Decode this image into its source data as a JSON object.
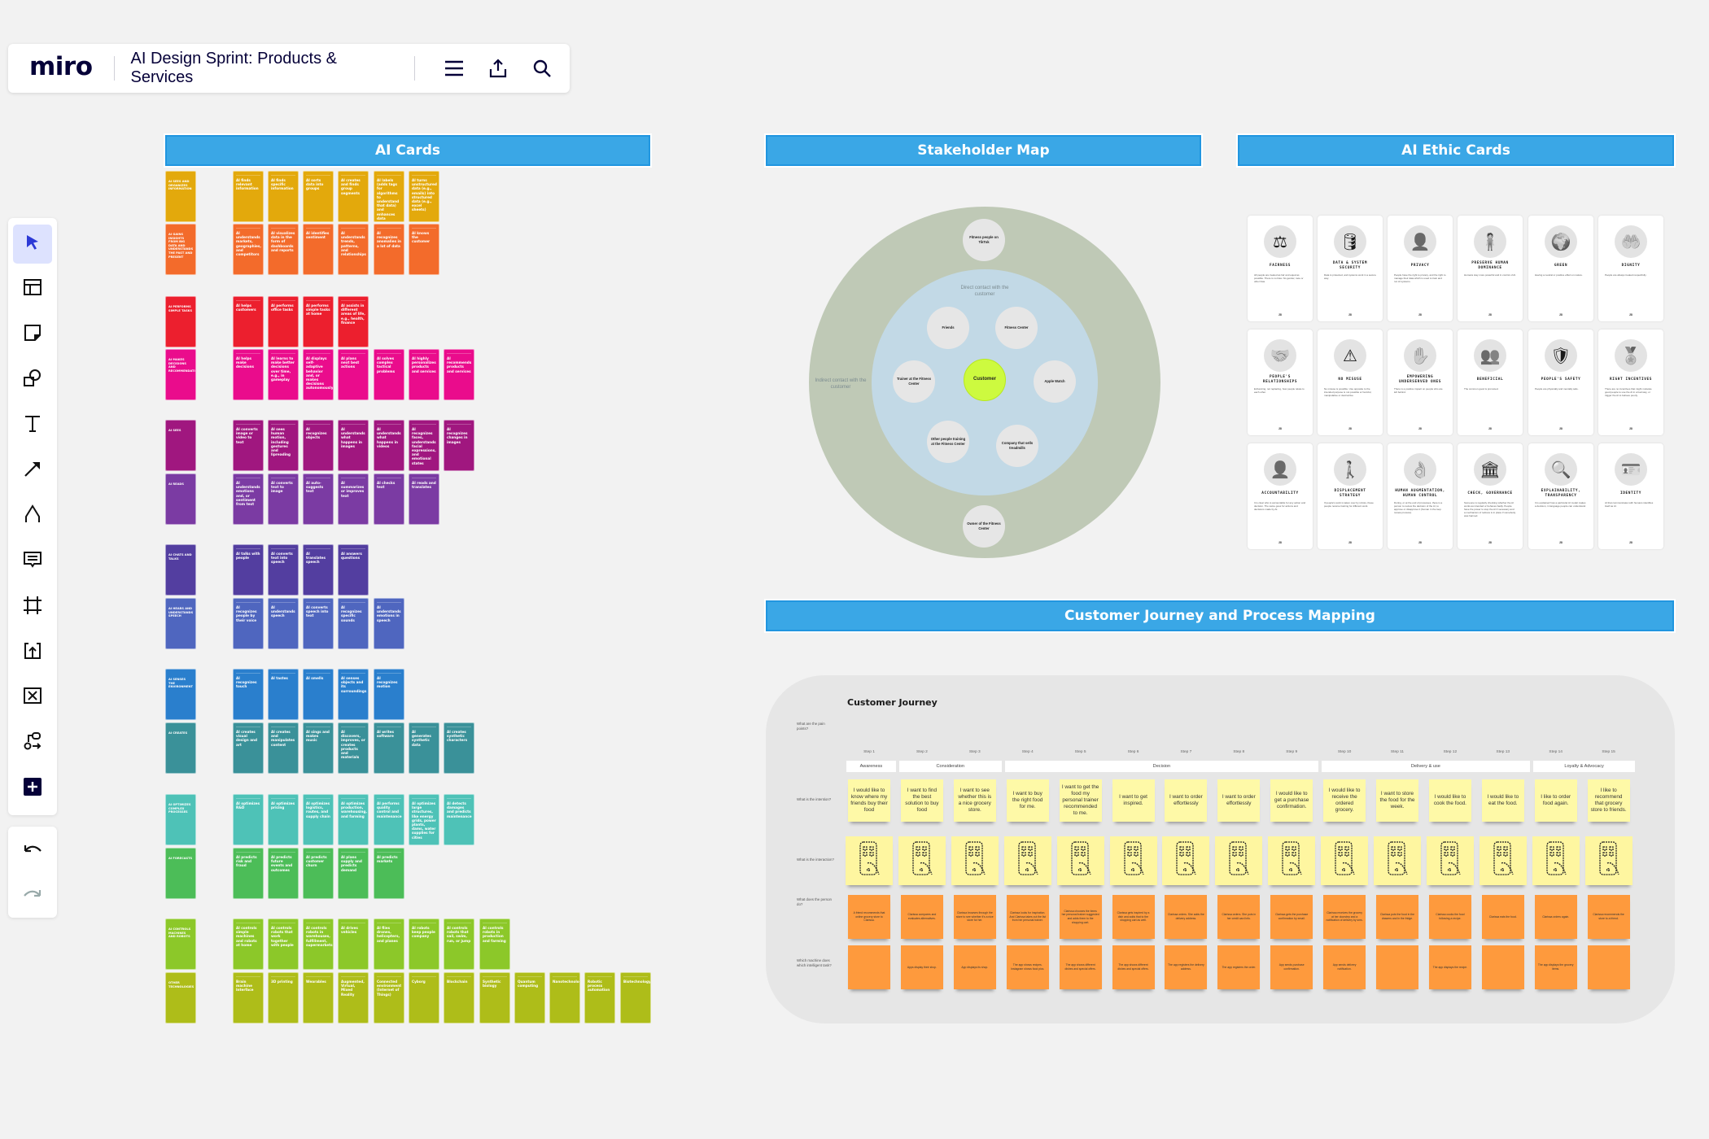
{
  "topbar": {
    "logo": "miro",
    "board_title": "AI Design Sprint: Products & Services",
    "icons": [
      "menu-icon",
      "export-icon",
      "search-icon"
    ]
  },
  "toolbar": {
    "tools": [
      {
        "name": "select",
        "icon": "cursor-icon",
        "active": true
      },
      {
        "name": "templates",
        "icon": "template-icon"
      },
      {
        "name": "sticky-note",
        "icon": "sticky-note-icon"
      },
      {
        "name": "shapes",
        "icon": "shapes-icon"
      },
      {
        "name": "text",
        "icon": "text-icon"
      },
      {
        "name": "connection-line",
        "icon": "arrow-icon"
      },
      {
        "name": "pen",
        "icon": "pen-icon"
      },
      {
        "name": "comment",
        "icon": "comment-icon"
      },
      {
        "name": "frame",
        "icon": "frame-icon"
      },
      {
        "name": "upload",
        "icon": "upload-icon"
      },
      {
        "name": "embed",
        "icon": "embed-icon"
      },
      {
        "name": "mindmap",
        "icon": "mindmap-icon"
      },
      {
        "name": "more-apps",
        "icon": "plus-icon"
      }
    ],
    "history": [
      "undo-icon",
      "redo-icon"
    ]
  },
  "sections": {
    "ai_cards": "AI Cards",
    "stakeholder_map": "Stakeholder Map",
    "ai_ethic_cards": "AI Ethic Cards",
    "customer_journey": "Customer Journey and Process Mapping"
  },
  "ai_cards": {
    "rows": [
      {
        "color": "#e3a90c",
        "category": "AI sees and organizes information",
        "cards": [
          "AI finds relevant information",
          "AI finds specific information",
          "AI sorts data into groups",
          "AI creates and finds group segments",
          "AI labels (adds tags for algorithms to understand that data) and enhances data",
          "AI turns unstructured data (e.g., emails) into structured data (e.g., excel sheets)"
        ]
      },
      {
        "color": "#f36b2b",
        "category": "AI gains insights from big data and understands the past and present",
        "cards": [
          "AI understands markets, geographies, and competitors",
          "AI visualizes data in the form of dashboards and reports",
          "AI identifies sentiment",
          "AI understands trends, patterns, and relationships",
          "AI recognizes anomalies in a lot of data",
          "AI knows the customer"
        ]
      },
      {
        "color": "#ec1f2e",
        "category": "AI performs simple tasks",
        "cards": [
          "AI helps customers",
          "AI performs office tasks",
          "AI performs simple tasks at home",
          "AI assists in different areas of life, e.g., health, finance"
        ]
      },
      {
        "color": "#ea0c8c",
        "category": "AI makes decisions and recommendations",
        "cards": [
          "AI helps make decisions",
          "AI learns to make better decisions over time, e.g., in gameplay",
          "AI displays self-adaptive behavior and, or makes decisions autonomously",
          "AI plans next best actions",
          "AI solves complex tactical problems",
          "AI highly personalizes products and services",
          "AI recommends products and services"
        ]
      },
      {
        "color": "#a0177f",
        "category": "AI sees",
        "cards": [
          "AI converts image or video to text",
          "AI sees human motion, including gestures and lipreading",
          "AI recognizes objects",
          "AI understands what happens in images",
          "AI understands what happens in videos",
          "AI recognizes faces, understands facial expressions, and emotional states",
          "AI recognizes changes in images"
        ]
      },
      {
        "color": "#7b3ba3",
        "category": "AI reads",
        "cards": [
          "AI understands emotions and, or sentiment from text",
          "AI converts text to image",
          "AI auto-suggests text",
          "AI summarizes or improves text",
          "AI checks text",
          "AI reads and translates"
        ]
      },
      {
        "color": "#533ea0",
        "category": "AI chats and talks",
        "cards": [
          "AI talks with people",
          "AI converts text into speech",
          "AI translates speech",
          "AI answers questions"
        ]
      },
      {
        "color": "#4f66bf",
        "category": "AI hears and understands speech",
        "cards": [
          "AI recognizes people by their voice",
          "AI understands speech",
          "AI converts speech into text",
          "AI recognizes specific sounds",
          "AI understands emotions in speech"
        ]
      },
      {
        "color": "#2a7fcd",
        "category": "AI senses the environment",
        "cards": [
          "AI recognizes touch",
          "AI tastes",
          "AI smells",
          "AI senses objects and its surroundings",
          "AI recognizes motion"
        ]
      },
      {
        "color": "#3a9199",
        "category": "AI creates",
        "cards": [
          "AI creates visual design and art",
          "AI creates and manipulates content",
          "AI sings and makes music",
          "AI discovers, improves, or creates products and materials",
          "AI writes software",
          "AI generates synthetic data",
          "AI creates synthetic characters"
        ]
      },
      {
        "color": "#4ec2b7",
        "category": "AI optimizes complex processes",
        "cards": [
          "AI optimizes R&D",
          "AI optimizes pricing",
          "AI optimizes logistics, routes, and supply chain",
          "AI optimizes production, warehousing, and farming",
          "AI performs quality control and maintenance",
          "AI optimizes large structures, like energy grids, power plants, dams, water supplies for cities",
          "AI detects damages and predicts maintenance"
        ]
      },
      {
        "color": "#4cbd58",
        "category": "AI forecasts",
        "cards": [
          "AI predicts risk and fraud",
          "AI predicts future events and outcomes",
          "AI predicts customer churn",
          "AI plans supply and predicts demand",
          "AI predicts markets"
        ]
      },
      {
        "color": "#8cc829",
        "category": "AI controls machines and robots",
        "cards": [
          "AI controls simple machines and robots at home",
          "AI controls robots that work together with people",
          "AI controls robots in warehouses, fulfillment, supermarkets",
          "AI drives vehicles",
          "AI flies drones, helicopters, and planes",
          "AI robots keep people company",
          "AI controls robots that sail, swim, run, or jump",
          "AI controls robots in production and farming"
        ]
      },
      {
        "color": "#aebd19",
        "category": "Other technologies",
        "cards": [
          "Brain machine Interface",
          "3D printing",
          "Wearables",
          "Augmented, Virtual, Mixed Reality",
          "Connected environment (Internet of Things)",
          "Cyborg",
          "Blockchain",
          "Synthetic biology",
          "Quantum computing",
          "Nanotechnology",
          "Robotic process automation",
          "Biotechnology"
        ]
      }
    ]
  },
  "stakeholder_map": {
    "outer_label": "Indirect contact with the customer",
    "inner_label": "Direct contact with the customer",
    "center": "Customer",
    "inner_nodes": [
      "Friends",
      "Fitness Center",
      "Trainer at the Fitness Center",
      "Apple Watch",
      "Other people training at the Fitness Center",
      "Company that sells treadmills"
    ],
    "outer_nodes": [
      "Fitness people on TikTok",
      "Owner of the Fitness Center"
    ],
    "colors": {
      "outer": "#bfc9b6",
      "inner": "#c2d9e6",
      "center": "#cdfa3f"
    }
  },
  "ai_ethic_cards": {
    "cards": [
      {
        "title": "FAIRNESS",
        "icon": "scales-icon",
        "desc": "All people are treated as fair and equal as possible. There is no bias. No gender, race or other bias."
      },
      {
        "title": "DATA & SYSTEM SECURITY",
        "icon": "database-lock-icon",
        "desc": "Data is protected, and systems work in a secure way."
      },
      {
        "title": "PRIVACY",
        "icon": "person-lock-icon",
        "desc": "People have the right to privacy, and the right to manage their data which is used to train and run AI systems."
      },
      {
        "title": "PRESERVE HUMAN DOMINANCE",
        "icon": "standing-person-icon",
        "desc": "Humans stay more powerful and in control of AI."
      },
      {
        "title": "GREEN",
        "icon": "globe-hand-icon",
        "desc": "Having a neutral or positive effect on nature."
      },
      {
        "title": "DIGNITY",
        "icon": "hands-person-icon",
        "desc": "People are always treated respectfully."
      },
      {
        "title": "PEOPLE'S RELATIONSHIPS",
        "icon": "handshake-icon",
        "desc": "Enhancing, not replacing, how people relate to each other."
      },
      {
        "title": "NO MISUSE",
        "icon": "warning-icon",
        "desc": "No misuse is possible. Use opposite to the intended purpose is not possible or harmful, manipulative or destructive."
      },
      {
        "title": "EMPOWERING UNDERSERVED ONES",
        "icon": "raised-hand-icon",
        "desc": "There is a positive impact on people who are left behind."
      },
      {
        "title": "BENEFICIAL",
        "icon": "group-icon",
        "desc": "The common good is promoted."
      },
      {
        "title": "PEOPLE'S SAFETY",
        "icon": "shield-check-icon",
        "desc": "People are physically and mentally safe."
      },
      {
        "title": "RIGHT INCENTIVES",
        "icon": "award-hands-icon",
        "desc": "There are no incentives that might motivate good people to use the AI in a bad way, or trigger the AI to behave poorly."
      },
      {
        "title": "ACCOUNTABILITY",
        "icon": "person-check-icon",
        "desc": "It is clear who is accountable for any action and decision. The same goes for actions and decisions made by AI."
      },
      {
        "title": "DISPLACEMENT STRATEGY",
        "icon": "walking-person-gears-icon",
        "desc": "If people's work is taken over by robots, these people receive training for different work."
      },
      {
        "title": "HUMAN AUGMENTATION, HUMAN CONTROL",
        "icon": "ok-hand-icon",
        "desc": "During, or at the end of processes, there is a person to review the decision of the AI, to approve or disapprove it (human in the loop review process)."
      },
      {
        "title": "CHECK, GOVERNANCE",
        "icon": "institution-icon",
        "desc": "Someone is regularly checking whether the AI works as intended or behaves badly. People have the power to stop the AI if necessary and a mechanism of redress is in place if somebody was harmed."
      },
      {
        "title": "EXPLAINABILITY, TRANSPARENCY",
        "icon": "magnifier-eye-icon",
        "desc": "It is explained how a particular AI model makes a decision, in language people can understand."
      },
      {
        "title": "IDENTITY",
        "icon": "id-card-icon",
        "desc": "AI that communicates with humans identifies itself as AI."
      }
    ],
    "card_number_label": "28"
  },
  "customer_journey": {
    "title": "Customer Journey",
    "row_labels": [
      "What are the pain points?",
      "What is the intention?",
      "What is the interaction?",
      "What does the person do?",
      "Which machine does which intelligent task?"
    ],
    "steps": [
      "Step 1",
      "Step 2",
      "Step 3",
      "Step 4",
      "Step 5",
      "Step 6",
      "Step 7",
      "Step 8",
      "Step 9",
      "Step 10",
      "Step 11",
      "Step 12",
      "Step 13",
      "Step 14",
      "Step 15"
    ],
    "phases": [
      {
        "label": "Awareness",
        "span": 1
      },
      {
        "label": "Consideration",
        "span": 2
      },
      {
        "label": "Decision",
        "span": 6
      },
      {
        "label": "Delivery & use",
        "span": 4
      },
      {
        "label": "Loyalty & Advocacy",
        "span": 2
      }
    ],
    "intentions": [
      "I would like to know where my friends buy their food",
      "I want to find the best solution to buy food",
      "I want to see whether this is a nice grocery store.",
      "I want to buy the right food for me.",
      "I want to get the food my personal trainer recommended to me.",
      "I want to get inspired.",
      "I want to order effortlessly",
      "I want to order effortlessly",
      "I would like to get a purchase confirmation.",
      "I would like to receive the ordered grocery.",
      "I want to store the food for the week.",
      "I would like to cook the food.",
      "I would like to eat the food.",
      "I like to order food again.",
      "I like to recommend that grocery store to friends."
    ],
    "interactions": [
      "friends-chatting-sketch",
      "phone-shop-sketch",
      "phone-grid-sketch",
      "phone-recipes-sketch",
      "phone-dishes-sketch",
      "phone-dish-select-sketch",
      "phone-address-sketch",
      "phone-payment-sketch",
      "phone-confirmation-sketch",
      "doorstep-delivery-sketch",
      "fridge-sketch",
      "cooking-sketch",
      "eating-sketch",
      "phone-reorder-sketch",
      "friends-recommend-sketch"
    ],
    "person_actions": [
      "A friend recommends that online grocery store to Clarissa.",
      "Clarissa compares and evaluates alternatives.",
      "Clarissa browses through the store to see whether it's a nice store for her.",
      "Clarissa looks for inspiration. And Clarissa takes out the list from her personal trainer.",
      "Clarissa chooses the items her personal trainer suggested and adds them to the shopping cart.",
      "Clarissa gets inspired by a dish and adds that to the shopping cart as well.",
      "Clarissa orders. She adds the delivery address.",
      "Clarissa orders. She puts in her credit card info.",
      "Clarissa gets the purchase confirmation by email.",
      "Clarissa receives the grocery at her doorstep and a notification of delivery by sms.",
      "Clarissa puts the food in the drawers and in the fridge.",
      "Clarissa cooks the food following a recipe.",
      "Clarissa eats the food.",
      "Clarissa orders again.",
      "Clarissa recommends the store to a friend."
    ],
    "machine_tasks": [
      "",
      "Apps display their shop.",
      "App displays its shop.",
      "The app shows recipes. Instagram shows food pics.",
      "The app shows different dishes and special offers.",
      "The app shows different dishes and special offers.",
      "The app registers the delivery address.",
      "The app registers the order.",
      "App sends purchase confirmation.",
      "App sends delivery notification.",
      "",
      "The app displays the recipe.",
      "",
      "The app displays the grocery items.",
      ""
    ]
  }
}
